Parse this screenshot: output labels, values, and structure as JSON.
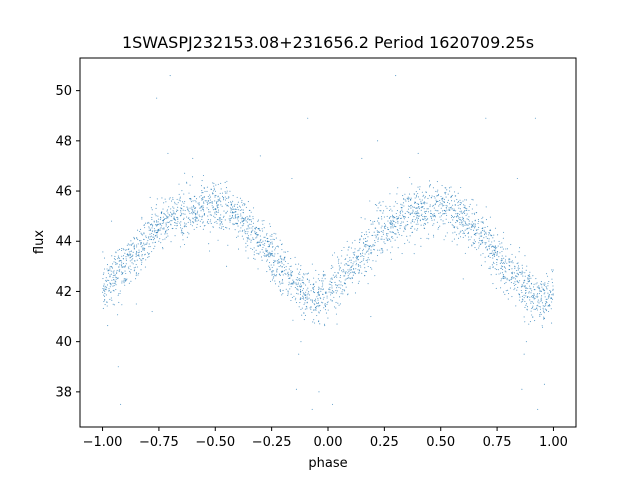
{
  "chart_data": {
    "type": "scatter",
    "title": "1SWASPJ232153.08+231656.2 Period 1620709.25s",
    "xlabel": "phase",
    "ylabel": "flux",
    "xlim": [
      -1.1,
      1.1
    ],
    "ylim": [
      36.6,
      51.3
    ],
    "xticks": [
      -1.0,
      -0.75,
      -0.5,
      -0.25,
      0.0,
      0.25,
      0.5,
      0.75,
      1.0
    ],
    "xtick_labels": [
      "−1.00",
      "−0.75",
      "−0.50",
      "−0.25",
      "0.00",
      "0.25",
      "0.50",
      "0.75",
      "1.00"
    ],
    "yticks": [
      38,
      40,
      42,
      44,
      46,
      48,
      50
    ],
    "ytick_labels": [
      "38",
      "40",
      "42",
      "44",
      "46",
      "48",
      "50"
    ],
    "grid": false,
    "marker_color": "#1f77b4",
    "trend": [
      [
        -1.0,
        42.2
      ],
      [
        -0.95,
        42.6
      ],
      [
        -0.9,
        43.0
      ],
      [
        -0.85,
        43.5
      ],
      [
        -0.8,
        44.1
      ],
      [
        -0.75,
        44.6
      ],
      [
        -0.7,
        44.9
      ],
      [
        -0.65,
        45.1
      ],
      [
        -0.6,
        45.2
      ],
      [
        -0.55,
        45.3
      ],
      [
        -0.5,
        45.3
      ],
      [
        -0.45,
        45.2
      ],
      [
        -0.4,
        44.9
      ],
      [
        -0.35,
        44.5
      ],
      [
        -0.3,
        44.0
      ],
      [
        -0.25,
        43.4
      ],
      [
        -0.2,
        42.8
      ],
      [
        -0.15,
        42.3
      ],
      [
        -0.1,
        41.9
      ],
      [
        -0.05,
        41.7
      ],
      [
        0.0,
        42.0
      ],
      [
        0.05,
        42.5
      ],
      [
        0.1,
        42.9
      ],
      [
        0.15,
        43.4
      ],
      [
        0.2,
        44.0
      ],
      [
        0.25,
        44.5
      ],
      [
        0.3,
        44.9
      ],
      [
        0.35,
        45.1
      ],
      [
        0.4,
        45.2
      ],
      [
        0.45,
        45.3
      ],
      [
        0.5,
        45.3
      ],
      [
        0.55,
        45.2
      ],
      [
        0.6,
        44.9
      ],
      [
        0.65,
        44.5
      ],
      [
        0.7,
        44.0
      ],
      [
        0.75,
        43.4
      ],
      [
        0.8,
        42.8
      ],
      [
        0.85,
        42.3
      ],
      [
        0.9,
        41.9
      ],
      [
        0.95,
        41.7
      ],
      [
        1.0,
        41.8
      ]
    ],
    "scatter_spread": 0.5,
    "point_count": 3000,
    "outliers": [
      [
        -0.96,
        44.8
      ],
      [
        -0.93,
        39.0
      ],
      [
        -0.92,
        37.5
      ],
      [
        -0.85,
        41.5
      ],
      [
        -0.78,
        41.2
      ],
      [
        -0.71,
        47.5
      ],
      [
        -0.7,
        50.6
      ],
      [
        -0.76,
        49.7
      ],
      [
        -0.6,
        47.3
      ],
      [
        -0.45,
        43.0
      ],
      [
        -0.3,
        47.4
      ],
      [
        -0.16,
        46.5
      ],
      [
        -0.14,
        38.1
      ],
      [
        -0.13,
        39.5
      ],
      [
        -0.12,
        40.0
      ],
      [
        -0.09,
        48.9
      ],
      [
        -0.07,
        37.3
      ],
      [
        -0.04,
        38.0
      ],
      [
        0.02,
        37.5
      ],
      [
        0.04,
        40.7
      ],
      [
        0.15,
        47.3
      ],
      [
        0.19,
        41.0
      ],
      [
        0.3,
        50.6
      ],
      [
        0.22,
        48.0
      ],
      [
        0.4,
        47.5
      ],
      [
        0.6,
        42.5
      ],
      [
        0.7,
        48.9
      ],
      [
        0.84,
        46.5
      ],
      [
        0.86,
        38.1
      ],
      [
        0.87,
        39.5
      ],
      [
        0.88,
        40.0
      ],
      [
        0.92,
        48.9
      ],
      [
        0.93,
        37.3
      ],
      [
        0.96,
        38.3
      ]
    ]
  }
}
